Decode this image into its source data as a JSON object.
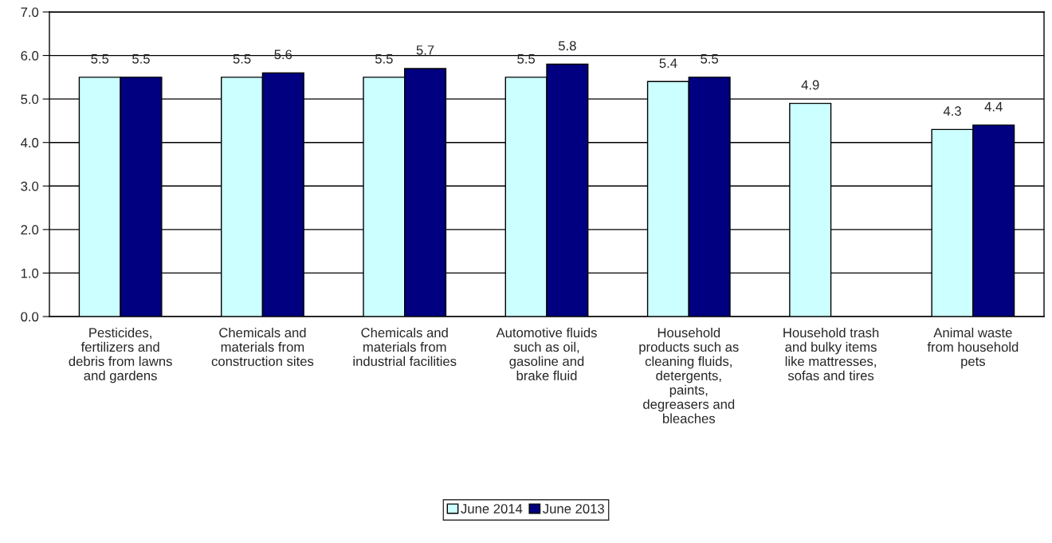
{
  "chart_data": {
    "type": "bar",
    "categories": [
      "Pesticides,\nfertilizers and\ndebris from lawns\nand gardens",
      "Chemicals and\nmaterials from\nconstruction sites",
      "Chemicals and\nmaterials from\nindustrial facilities",
      "Automotive fluids\nsuch as oil,\ngasoline and\nbrake fluid",
      "Household\nproducts such as\ncleaning fluids,\ndetergents,\npaints,\ndegreasers and\nbleaches",
      "Household trash\nand bulky items\nlike mattresses,\nsofas and tires",
      "Animal waste\nfrom household\npets"
    ],
    "series": [
      {
        "name": "June 2014",
        "color": "#ccffff",
        "values": [
          5.5,
          5.5,
          5.5,
          5.5,
          5.4,
          4.9,
          4.3
        ]
      },
      {
        "name": "June 2013",
        "color": "#000080",
        "values": [
          5.5,
          5.6,
          5.7,
          5.8,
          5.5,
          null,
          4.4
        ]
      }
    ],
    "ylim": [
      0,
      7
    ],
    "yticks": [
      {
        "value": 0,
        "label": "0.0"
      },
      {
        "value": 1,
        "label": "1.0"
      },
      {
        "value": 2,
        "label": "2.0"
      },
      {
        "value": 3,
        "label": "3.0"
      },
      {
        "value": 4,
        "label": "4.0"
      },
      {
        "value": 5,
        "label": "5.0"
      },
      {
        "value": 6,
        "label": "6.0"
      },
      {
        "value": 7,
        "label": "7.0"
      }
    ],
    "grid": "y",
    "legend": "bottom",
    "data_labels": true
  }
}
